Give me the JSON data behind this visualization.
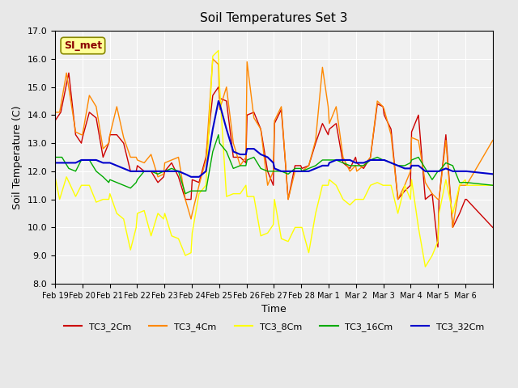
{
  "title": "Soil Temperatures Set 3",
  "xlabel": "Time",
  "ylabel": "Soil Temperature (C)",
  "ylim": [
    8.0,
    17.0
  ],
  "yticks": [
    8.0,
    9.0,
    10.0,
    11.0,
    12.0,
    13.0,
    14.0,
    15.0,
    16.0,
    17.0
  ],
  "xtick_labels": [
    "Feb 19",
    "Feb 20",
    "Feb 21",
    "Feb 22",
    "Feb 23",
    "Feb 24",
    "Feb 25",
    "Feb 26",
    "Feb 27",
    "Feb 28",
    "Mar 1",
    "Mar 2",
    "Mar 3",
    "Mar 4",
    "Mar 5",
    "Mar 6",
    ""
  ],
  "colors": {
    "TC3_2Cm": "#cc0000",
    "TC3_4Cm": "#ff8800",
    "TC3_8Cm": "#ffff00",
    "TC3_16Cm": "#00aa00",
    "TC3_32Cm": "#0000cc"
  },
  "legend_labels": [
    "TC3_2Cm",
    "TC3_4Cm",
    "TC3_8Cm",
    "TC3_16Cm",
    "TC3_32Cm"
  ],
  "bg_color": "#e8e8e8",
  "plot_bg": "#f0f0f0",
  "annotation_text": "SI_met",
  "annotation_bg": "#ffff99",
  "annotation_border": "#888800"
}
